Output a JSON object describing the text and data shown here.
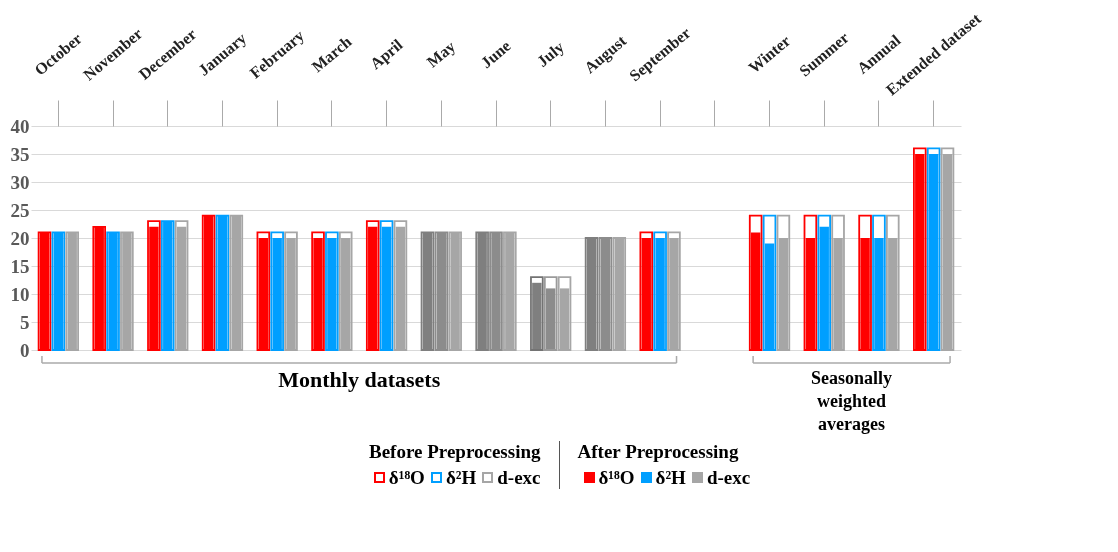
{
  "chart_data": {
    "type": "bar",
    "categories": [
      "October",
      "November",
      "December",
      "January",
      "February",
      "March",
      "April",
      "May",
      "June",
      "July",
      "August",
      "September",
      null,
      "Winter",
      "Summer",
      "Annual",
      "Extended dataset"
    ],
    "series": [
      {
        "name": "δ¹⁸O",
        "color": "#ff0000",
        "colors": [
          "#ff0000",
          "#ff0000",
          "#ff0000",
          "#ff0000",
          "#ff0000",
          "#ff0000",
          "#ff0000",
          "#7f7f7f",
          "#7f7f7f",
          "#737373",
          "#7f7f7f",
          "#ff0000",
          null,
          "#ff0000",
          "#ff0000",
          "#ff0000",
          "#ff0000"
        ],
        "values": [
          21,
          22,
          23,
          24,
          21,
          21,
          23,
          21,
          21,
          13,
          20,
          21,
          null,
          24,
          24,
          24,
          36
        ]
      },
      {
        "name": "δ²H",
        "color": "#009fff",
        "colors": [
          "#009fff",
          "#009fff",
          "#009fff",
          "#009fff",
          "#009fff",
          "#009fff",
          "#009fff",
          "#8c8c8c",
          "#8c8c8c",
          "#9a9a9a",
          "#8c8c8c",
          "#009fff",
          null,
          "#009fff",
          "#009fff",
          "#009fff",
          "#009fff"
        ],
        "values": [
          21,
          21,
          23,
          24,
          21,
          21,
          23,
          21,
          21,
          13,
          20,
          21,
          null,
          24,
          24,
          24,
          36
        ]
      },
      {
        "name": "d-exc",
        "color": "#a6a6a6",
        "colors": [
          "#a6a6a6",
          "#a6a6a6",
          "#a6a6a6",
          "#a6a6a6",
          "#a6a6a6",
          "#a6a6a6",
          "#a6a6a6",
          "#a6a6a6",
          "#a6a6a6",
          "#a6a6a6",
          "#a6a6a6",
          "#a6a6a6",
          null,
          "#a6a6a6",
          "#a6a6a6",
          "#a6a6a6",
          "#a6a6a6"
        ],
        "values": [
          21,
          21,
          23,
          24,
          21,
          21,
          23,
          21,
          21,
          13,
          20,
          21,
          null,
          24,
          24,
          24,
          36
        ]
      },
      {
        "name": "δ¹⁸O",
        "color": "#ff0000",
        "colors": [
          "#ff0000",
          "#ff0000",
          "#ff0000",
          "#ff0000",
          "#ff0000",
          "#ff0000",
          "#ff0000",
          "#7f7f7f",
          "#7f7f7f",
          "#7f7f7f",
          "#7f7f7f",
          "#ff0000",
          null,
          "#ff0000",
          "#ff0000",
          "#ff0000",
          "#ff0000"
        ],
        "values": [
          21,
          22,
          22,
          24,
          20,
          20,
          22,
          21,
          21,
          12,
          20,
          20,
          null,
          21,
          20,
          20,
          35
        ]
      },
      {
        "name": "δ²H",
        "color": "#009fff",
        "colors": [
          "#009fff",
          "#009fff",
          "#009fff",
          "#009fff",
          "#009fff",
          "#009fff",
          "#009fff",
          "#8c8c8c",
          "#8c8c8c",
          "#8c8c8c",
          "#8c8c8c",
          "#009fff",
          null,
          "#009fff",
          "#009fff",
          "#009fff",
          "#009fff"
        ],
        "values": [
          21,
          21,
          23,
          24,
          20,
          20,
          22,
          21,
          21,
          11,
          20,
          20,
          null,
          19,
          22,
          20,
          35
        ]
      },
      {
        "name": "d-exc",
        "color": "#a6a6a6",
        "colors": [
          "#a6a6a6",
          "#a6a6a6",
          "#a6a6a6",
          "#a6a6a6",
          "#a6a6a6",
          "#a6a6a6",
          "#a6a6a6",
          "#a6a6a6",
          "#a6a6a6",
          "#a6a6a6",
          "#a6a6a6",
          "#a6a6a6",
          null,
          "#a6a6a6",
          "#a6a6a6",
          "#a6a6a6",
          "#a6a6a6"
        ],
        "values": [
          21,
          21,
          22,
          24,
          20,
          20,
          22,
          21,
          21,
          11,
          20,
          20,
          null,
          20,
          20,
          20,
          35
        ]
      }
    ],
    "ylim": [
      0,
      40
    ],
    "yticks": [
      0,
      5,
      10,
      15,
      20,
      25,
      30,
      35,
      40
    ],
    "grid": "y",
    "legend": "bottom",
    "annotations": [
      "Monthly datasets",
      "Seasonally weighted averages",
      "Before Preprocessing",
      "After Preprocessing"
    ]
  }
}
